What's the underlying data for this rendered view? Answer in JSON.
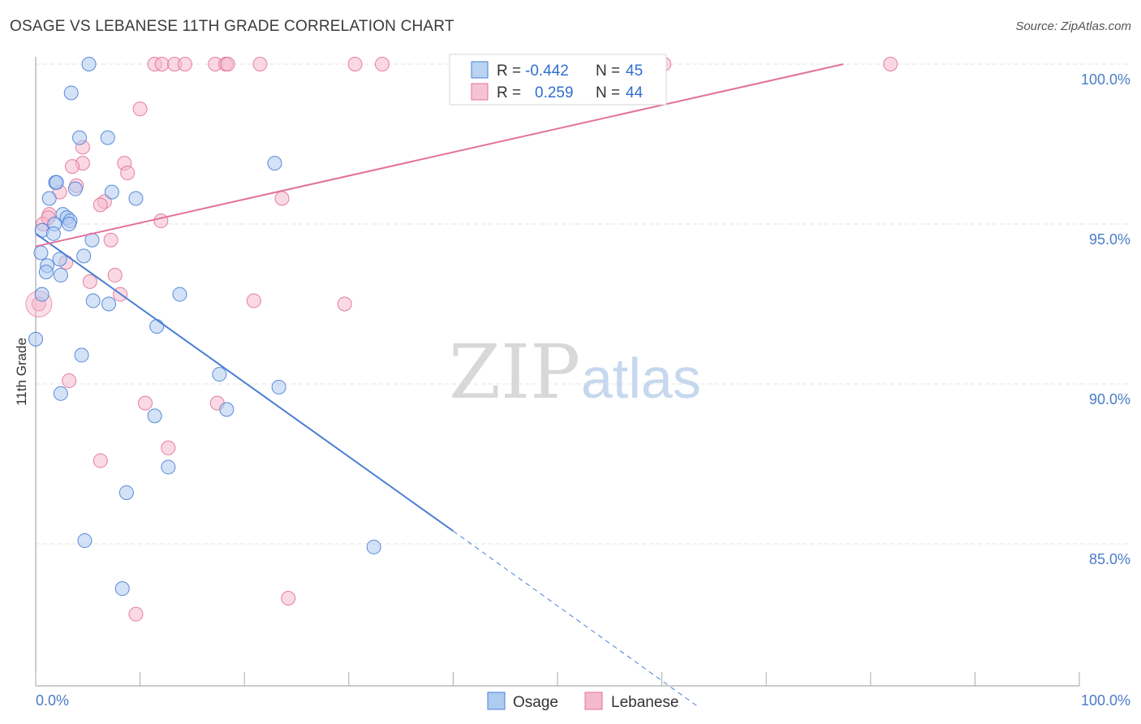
{
  "title": "OSAGE VS LEBANESE 11TH GRADE CORRELATION CHART",
  "source": "Source: ZipAtlas.com",
  "watermark": {
    "zip": "ZIP",
    "atlas": "atlas"
  },
  "colors": {
    "osage": "#4a7fd4",
    "osage_fill": "#aecbf0",
    "lebanese": "#e2719a",
    "lebanese_fill": "#f5b9cd",
    "value_text": "#2f6fd0",
    "grid": "#e3e3e3"
  },
  "legend": {
    "rows": [
      {
        "r_label": "R = ",
        "r_value": "-0.442",
        "n_label": "N = ",
        "n_value": "45"
      },
      {
        "r_label": "R = ",
        "r_value": "0.259",
        "n_label": "N = ",
        "n_value": "44"
      }
    ]
  },
  "bottom_legend": {
    "items": [
      "Osage",
      "Lebanese"
    ]
  },
  "chart_data": {
    "type": "scatter",
    "title": "OSAGE VS LEBANESE 11TH GRADE CORRELATION CHART",
    "xlabel": "",
    "ylabel": "11th Grade",
    "xlim": [
      0,
      100
    ],
    "ylim": [
      80.3,
      100.9
    ],
    "x_tick_labels": [
      "0.0%",
      "100.0%"
    ],
    "y_ticks": [
      85,
      90,
      95,
      100
    ],
    "y_tick_labels": [
      "85.0%",
      "90.0%",
      "95.0%",
      "100.0%"
    ],
    "grid": true,
    "legend_position": "top-center",
    "series": [
      {
        "name": "Osage",
        "r": -0.442,
        "n": 45,
        "trend": {
          "x0": 0,
          "y0": 94.7,
          "x1": 40,
          "y1": 85.4,
          "dashed_to_x": 63.5,
          "dashed_to_y": 79.9
        },
        "points": [
          [
            5.1,
            100.0
          ],
          [
            3.4,
            99.1
          ],
          [
            4.2,
            97.7
          ],
          [
            6.9,
            97.7
          ],
          [
            22.9,
            96.9
          ],
          [
            1.9,
            96.3
          ],
          [
            2.0,
            96.3
          ],
          [
            3.8,
            96.1
          ],
          [
            7.3,
            96.0
          ],
          [
            1.3,
            95.8
          ],
          [
            9.6,
            95.8
          ],
          [
            2.6,
            95.3
          ],
          [
            3.0,
            95.2
          ],
          [
            3.3,
            95.1
          ],
          [
            1.8,
            95.0
          ],
          [
            3.2,
            95.0
          ],
          [
            0.6,
            94.8
          ],
          [
            1.7,
            94.7
          ],
          [
            5.4,
            94.5
          ],
          [
            0.5,
            94.1
          ],
          [
            4.6,
            94.0
          ],
          [
            2.3,
            93.9
          ],
          [
            1.1,
            93.7
          ],
          [
            1.0,
            93.5
          ],
          [
            2.4,
            93.4
          ],
          [
            0.6,
            92.8
          ],
          [
            13.8,
            92.8
          ],
          [
            5.5,
            92.6
          ],
          [
            7.0,
            92.5
          ],
          [
            11.6,
            91.8
          ],
          [
            0.0,
            91.4
          ],
          [
            4.4,
            90.9
          ],
          [
            17.6,
            90.3
          ],
          [
            23.3,
            89.9
          ],
          [
            2.4,
            89.7
          ],
          [
            18.3,
            89.2
          ],
          [
            11.4,
            89.0
          ],
          [
            12.7,
            87.4
          ],
          [
            8.7,
            86.6
          ],
          [
            4.7,
            85.1
          ],
          [
            32.4,
            84.9
          ],
          [
            8.3,
            83.6
          ]
        ]
      },
      {
        "name": "Lebanese",
        "r": 0.259,
        "n": 44,
        "trend": {
          "x0": 0,
          "y0": 94.3,
          "x1": 77.4,
          "y1": 100.0
        },
        "points": [
          [
            11.4,
            100.0
          ],
          [
            12.1,
            100.0
          ],
          [
            13.3,
            100.0
          ],
          [
            14.3,
            100.0
          ],
          [
            17.2,
            100.0
          ],
          [
            18.2,
            100.0
          ],
          [
            18.4,
            100.0
          ],
          [
            21.5,
            100.0
          ],
          [
            30.6,
            100.0
          ],
          [
            33.2,
            100.0
          ],
          [
            60.2,
            100.0
          ],
          [
            81.9,
            100.0
          ],
          [
            10.0,
            98.6
          ],
          [
            4.5,
            97.4
          ],
          [
            4.5,
            96.9
          ],
          [
            8.5,
            96.9
          ],
          [
            3.5,
            96.8
          ],
          [
            8.8,
            96.6
          ],
          [
            3.9,
            96.2
          ],
          [
            2.3,
            96.0
          ],
          [
            6.6,
            95.7
          ],
          [
            6.2,
            95.6
          ],
          [
            12.0,
            95.1
          ],
          [
            1.3,
            95.3
          ],
          [
            0.7,
            95.0
          ],
          [
            1.2,
            95.2
          ],
          [
            23.6,
            95.8
          ],
          [
            7.2,
            94.5
          ],
          [
            2.9,
            93.8
          ],
          [
            7.6,
            93.4
          ],
          [
            5.2,
            93.2
          ],
          [
            8.1,
            92.8
          ],
          [
            20.9,
            92.6
          ],
          [
            29.6,
            92.5
          ],
          [
            0.3,
            92.5
          ],
          [
            3.2,
            90.1
          ],
          [
            10.5,
            89.4
          ],
          [
            17.4,
            89.4
          ],
          [
            12.7,
            88.0
          ],
          [
            6.2,
            87.6
          ],
          [
            24.2,
            83.3
          ],
          [
            9.6,
            82.8
          ]
        ]
      }
    ]
  }
}
